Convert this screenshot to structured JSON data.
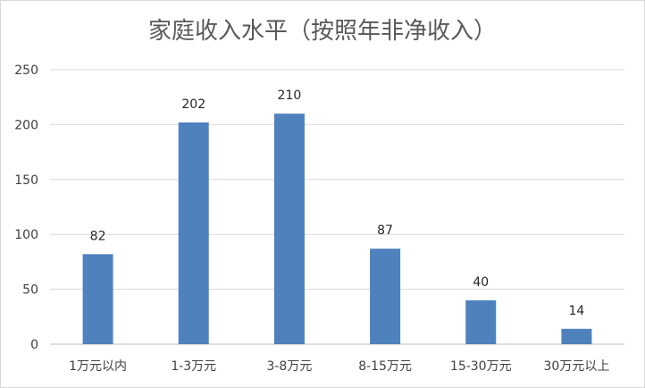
{
  "chart_data": {
    "type": "bar",
    "title": "家庭收入水平（按照年非净收入）",
    "xlabel": "",
    "ylabel": "",
    "categories": [
      "1万元以内",
      "1-3万元",
      "3-8万元",
      "8-15万元",
      "15-30万元",
      "30万元以上"
    ],
    "values": [
      82,
      202,
      210,
      87,
      40,
      14
    ],
    "ylim": [
      0,
      250
    ],
    "yticks": [
      0,
      50,
      100,
      150,
      200,
      250
    ],
    "grid": true,
    "legend": "none",
    "bar_color": "#4f81bd"
  }
}
